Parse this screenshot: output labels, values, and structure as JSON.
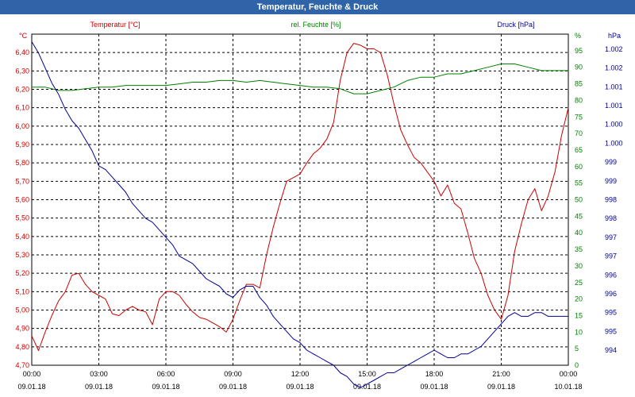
{
  "title": "Temperatur, Feuchte & Druck",
  "chart_data": {
    "type": "line",
    "title": "Temperatur, Feuchte & Druck",
    "x_ticks": [
      {
        "time": "00:00",
        "date": "09.01.18"
      },
      {
        "time": "03:00",
        "date": "09.01.18"
      },
      {
        "time": "06:00",
        "date": "09.01.18"
      },
      {
        "time": "09:00",
        "date": "09.01.18"
      },
      {
        "time": "12:00",
        "date": "09.01.18"
      },
      {
        "time": "15:00",
        "date": "09.01.18"
      },
      {
        "time": "18:00",
        "date": "09.01.18"
      },
      {
        "time": "21:00",
        "date": "09.01.18"
      },
      {
        "time": "00:00",
        "date": "10.01.18"
      }
    ],
    "xlim": [
      0,
      24
    ],
    "grid": true,
    "axes": {
      "temperature": {
        "label": "Temperatur [°C]",
        "unit": "°C",
        "ylim": [
          4.7,
          6.5
        ],
        "color": "#cc0000",
        "ticks": [
          "4,70",
          "4,80",
          "4,90",
          "5,00",
          "5,10",
          "5,20",
          "5,30",
          "5,40",
          "5,50",
          "5,60",
          "5,70",
          "5,80",
          "5,90",
          "6,00",
          "6,10",
          "6,20",
          "6,30",
          "6,40"
        ]
      },
      "humidity": {
        "label": "rel. Feuchte [%]",
        "unit": "%",
        "ylim": [
          0,
          100
        ],
        "color": "#008000",
        "ticks": [
          "0",
          "5",
          "10",
          "15",
          "20",
          "25",
          "30",
          "35",
          "40",
          "45",
          "50",
          "55",
          "60",
          "65",
          "70",
          "75",
          "80",
          "85",
          "90",
          "95"
        ]
      },
      "pressure": {
        "label": "Druck [hPa]",
        "unit": "hPa",
        "ylim": [
          993.7,
          1002.5
        ],
        "color": "#000099",
        "ticks": [
          {
            "v": 994.1,
            "t": "994"
          },
          {
            "v": 994.6,
            "t": "995"
          },
          {
            "v": 995.1,
            "t": "995"
          },
          {
            "v": 995.6,
            "t": "996"
          },
          {
            "v": 996.1,
            "t": "996"
          },
          {
            "v": 996.6,
            "t": "997"
          },
          {
            "v": 997.1,
            "t": "997"
          },
          {
            "v": 997.6,
            "t": "998"
          },
          {
            "v": 998.1,
            "t": "998"
          },
          {
            "v": 998.6,
            "t": "999"
          },
          {
            "v": 999.1,
            "t": "999"
          },
          {
            "v": 999.6,
            "t": "1.000"
          },
          {
            "v": 1000.1,
            "t": "1.000"
          },
          {
            "v": 1000.6,
            "t": "1.001"
          },
          {
            "v": 1001.1,
            "t": "1.001"
          },
          {
            "v": 1001.6,
            "t": "1.002"
          },
          {
            "v": 1002.1,
            "t": "1.002"
          }
        ]
      }
    },
    "series": [
      {
        "name": "Temperatur [°C]",
        "axis": "temperature",
        "color": "#cc0000",
        "points": [
          [
            0,
            4.86
          ],
          [
            0.3,
            4.78
          ],
          [
            0.6,
            4.88
          ],
          [
            0.9,
            4.97
          ],
          [
            1.2,
            5.05
          ],
          [
            1.5,
            5.1
          ],
          [
            1.8,
            5.19
          ],
          [
            2.1,
            5.2
          ],
          [
            2.4,
            5.14
          ],
          [
            2.7,
            5.1
          ],
          [
            3.0,
            5.08
          ],
          [
            3.3,
            5.06
          ],
          [
            3.6,
            4.98
          ],
          [
            3.9,
            4.97
          ],
          [
            4.2,
            5.0
          ],
          [
            4.5,
            5.02
          ],
          [
            4.8,
            5.0
          ],
          [
            5.1,
            4.99
          ],
          [
            5.4,
            4.92
          ],
          [
            5.7,
            5.06
          ],
          [
            6.0,
            5.1
          ],
          [
            6.3,
            5.1
          ],
          [
            6.6,
            5.08
          ],
          [
            6.9,
            5.03
          ],
          [
            7.2,
            4.99
          ],
          [
            7.5,
            4.96
          ],
          [
            7.8,
            4.95
          ],
          [
            8.1,
            4.93
          ],
          [
            8.4,
            4.91
          ],
          [
            8.7,
            4.88
          ],
          [
            9.0,
            4.95
          ],
          [
            9.3,
            5.05
          ],
          [
            9.6,
            5.14
          ],
          [
            9.9,
            5.14
          ],
          [
            10.2,
            5.12
          ],
          [
            10.5,
            5.3
          ],
          [
            10.8,
            5.45
          ],
          [
            11.1,
            5.58
          ],
          [
            11.4,
            5.7
          ],
          [
            11.7,
            5.72
          ],
          [
            12.0,
            5.74
          ],
          [
            12.3,
            5.8
          ],
          [
            12.6,
            5.85
          ],
          [
            12.9,
            5.88
          ],
          [
            13.2,
            5.93
          ],
          [
            13.5,
            6.02
          ],
          [
            13.8,
            6.25
          ],
          [
            14.1,
            6.4
          ],
          [
            14.4,
            6.45
          ],
          [
            14.7,
            6.44
          ],
          [
            15.0,
            6.42
          ],
          [
            15.3,
            6.42
          ],
          [
            15.6,
            6.4
          ],
          [
            15.9,
            6.28
          ],
          [
            16.2,
            6.12
          ],
          [
            16.5,
            5.98
          ],
          [
            16.8,
            5.9
          ],
          [
            17.1,
            5.83
          ],
          [
            17.4,
            5.8
          ],
          [
            17.7,
            5.75
          ],
          [
            18.0,
            5.7
          ],
          [
            18.3,
            5.62
          ],
          [
            18.6,
            5.68
          ],
          [
            18.9,
            5.58
          ],
          [
            19.2,
            5.55
          ],
          [
            19.5,
            5.42
          ],
          [
            19.8,
            5.28
          ],
          [
            20.1,
            5.2
          ],
          [
            20.4,
            5.08
          ],
          [
            20.7,
            5.0
          ],
          [
            21.0,
            4.95
          ],
          [
            21.3,
            5.08
          ],
          [
            21.6,
            5.32
          ],
          [
            21.9,
            5.47
          ],
          [
            22.2,
            5.6
          ],
          [
            22.5,
            5.66
          ],
          [
            22.8,
            5.54
          ],
          [
            23.1,
            5.62
          ],
          [
            23.4,
            5.75
          ],
          [
            23.7,
            5.95
          ],
          [
            24.0,
            6.1
          ]
        ]
      },
      {
        "name": "rel. Feuchte [%]",
        "axis": "humidity",
        "color": "#008000",
        "points": [
          [
            0,
            84
          ],
          [
            0.6,
            84
          ],
          [
            1.2,
            83
          ],
          [
            1.8,
            83
          ],
          [
            2.4,
            83.5
          ],
          [
            3.0,
            84
          ],
          [
            3.6,
            84
          ],
          [
            4.2,
            84.5
          ],
          [
            4.8,
            84.5
          ],
          [
            5.4,
            84.5
          ],
          [
            6.0,
            84.5
          ],
          [
            6.6,
            85
          ],
          [
            7.2,
            85.5
          ],
          [
            7.8,
            85.5
          ],
          [
            8.4,
            86
          ],
          [
            9.0,
            86
          ],
          [
            9.6,
            85.5
          ],
          [
            10.2,
            86
          ],
          [
            10.8,
            85.5
          ],
          [
            11.4,
            85
          ],
          [
            12.0,
            84.5
          ],
          [
            12.6,
            84
          ],
          [
            13.2,
            84
          ],
          [
            13.8,
            83.5
          ],
          [
            14.4,
            82
          ],
          [
            15.0,
            82
          ],
          [
            15.6,
            83
          ],
          [
            16.2,
            84
          ],
          [
            16.8,
            86
          ],
          [
            17.4,
            87
          ],
          [
            18.0,
            87
          ],
          [
            18.6,
            88
          ],
          [
            19.2,
            88
          ],
          [
            19.8,
            89
          ],
          [
            20.4,
            90
          ],
          [
            21.0,
            91
          ],
          [
            21.6,
            91
          ],
          [
            22.2,
            90
          ],
          [
            22.8,
            89
          ],
          [
            23.4,
            89
          ],
          [
            24.0,
            89
          ]
        ]
      },
      {
        "name": "Druck [hPa]",
        "axis": "pressure",
        "color": "#000099",
        "points": [
          [
            0,
            1002.3
          ],
          [
            0.3,
            1002.0
          ],
          [
            0.6,
            1001.6
          ],
          [
            0.9,
            1001.2
          ],
          [
            1.2,
            1000.9
          ],
          [
            1.5,
            1000.5
          ],
          [
            1.8,
            1000.2
          ],
          [
            2.1,
            1000.0
          ],
          [
            2.4,
            999.7
          ],
          [
            2.7,
            999.4
          ],
          [
            3.0,
            999.0
          ],
          [
            3.3,
            998.9
          ],
          [
            3.6,
            998.7
          ],
          [
            3.9,
            998.5
          ],
          [
            4.2,
            998.3
          ],
          [
            4.5,
            998.0
          ],
          [
            4.8,
            997.8
          ],
          [
            5.1,
            997.6
          ],
          [
            5.4,
            997.5
          ],
          [
            5.7,
            997.3
          ],
          [
            6.0,
            997.1
          ],
          [
            6.3,
            996.9
          ],
          [
            6.6,
            996.6
          ],
          [
            6.9,
            996.5
          ],
          [
            7.2,
            996.4
          ],
          [
            7.5,
            996.2
          ],
          [
            7.8,
            996.0
          ],
          [
            8.1,
            995.9
          ],
          [
            8.4,
            995.8
          ],
          [
            8.7,
            995.6
          ],
          [
            9.0,
            995.5
          ],
          [
            9.3,
            995.7
          ],
          [
            9.6,
            995.8
          ],
          [
            9.9,
            995.8
          ],
          [
            10.2,
            995.5
          ],
          [
            10.5,
            995.3
          ],
          [
            10.8,
            995.0
          ],
          [
            11.1,
            994.8
          ],
          [
            11.4,
            994.6
          ],
          [
            11.7,
            994.4
          ],
          [
            12.0,
            994.3
          ],
          [
            12.3,
            994.1
          ],
          [
            12.6,
            994.0
          ],
          [
            12.9,
            993.9
          ],
          [
            13.2,
            993.8
          ],
          [
            13.5,
            993.7
          ],
          [
            13.8,
            993.5
          ],
          [
            14.1,
            993.4
          ],
          [
            14.4,
            993.2
          ],
          [
            14.7,
            993.1
          ],
          [
            15.0,
            993.2
          ],
          [
            15.3,
            993.3
          ],
          [
            15.6,
            993.4
          ],
          [
            15.9,
            993.5
          ],
          [
            16.2,
            993.5
          ],
          [
            16.5,
            993.6
          ],
          [
            16.8,
            993.7
          ],
          [
            17.1,
            993.8
          ],
          [
            17.4,
            993.9
          ],
          [
            17.7,
            994.0
          ],
          [
            18.0,
            994.1
          ],
          [
            18.3,
            994.0
          ],
          [
            18.6,
            993.9
          ],
          [
            18.9,
            993.9
          ],
          [
            19.2,
            994.0
          ],
          [
            19.5,
            994.0
          ],
          [
            19.8,
            994.1
          ],
          [
            20.1,
            994.2
          ],
          [
            20.4,
            994.4
          ],
          [
            20.7,
            994.6
          ],
          [
            21.0,
            994.8
          ],
          [
            21.3,
            995.0
          ],
          [
            21.6,
            995.1
          ],
          [
            21.9,
            995.0
          ],
          [
            22.2,
            995.0
          ],
          [
            22.5,
            995.1
          ],
          [
            22.8,
            995.1
          ],
          [
            23.1,
            995.0
          ],
          [
            23.4,
            995.0
          ],
          [
            23.7,
            995.0
          ],
          [
            24.0,
            995.0
          ]
        ]
      }
    ]
  }
}
